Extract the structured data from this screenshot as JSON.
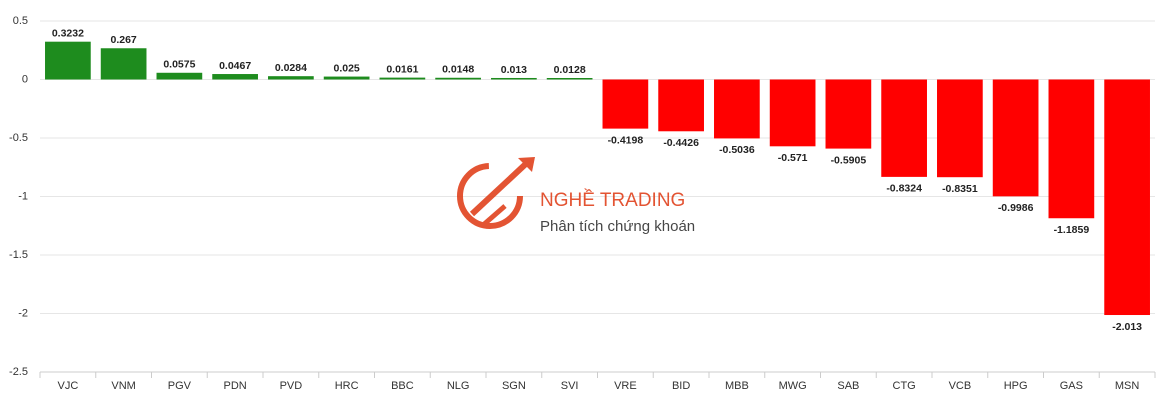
{
  "chart_data": {
    "type": "bar",
    "categories": [
      "VJC",
      "VNM",
      "PGV",
      "PDN",
      "PVD",
      "HRC",
      "BBC",
      "NLG",
      "SGN",
      "SVI",
      "VRE",
      "BID",
      "MBB",
      "MWG",
      "SAB",
      "CTG",
      "VCB",
      "HPG",
      "GAS",
      "MSN"
    ],
    "values": [
      0.3232,
      0.267,
      0.0575,
      0.0467,
      0.0284,
      0.025,
      0.0161,
      0.0148,
      0.013,
      0.0128,
      -0.4198,
      -0.4426,
      -0.5036,
      -0.571,
      -0.5905,
      -0.8324,
      -0.8351,
      -0.9986,
      -1.1859,
      -2.013
    ],
    "color_positive": "#1e8c1e",
    "color_negative": "#ff0000",
    "ylim": [
      -2.5,
      0.5
    ],
    "yticks": [
      0.5,
      0,
      -0.5,
      -1,
      -1.5,
      -2,
      -2.5
    ],
    "grid": true
  },
  "watermark": {
    "title": "NGHỀ TRADING",
    "subtitle": "Phân tích chứng khoán"
  }
}
